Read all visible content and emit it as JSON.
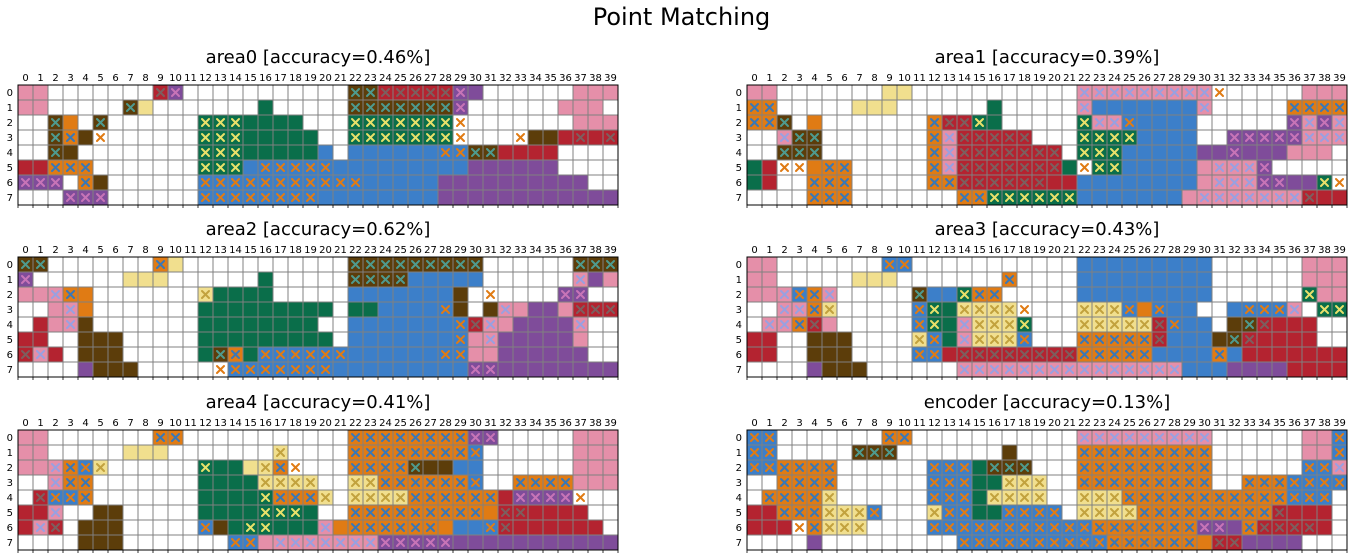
{
  "title": "Point Matching",
  "grid": {
    "rows": 8,
    "cols": 40
  },
  "palette": {
    "p": "#e58fa9",
    "y": "#f1df8e",
    "o": "#e07b14",
    "d": "#5c3d0a",
    "g": "#0a6e4a",
    "b": "#3c7fc9",
    "r": "#b42330",
    "u": "#7f4c9a"
  },
  "cross_colors": {
    "p": "#9aa0e0",
    "y": "#c2a23e",
    "o": "#3a78b7",
    "d": "#4e9a8e",
    "g": "#e8e06a",
    "b": "#e07b14",
    "r": "#7d5e5e",
    "u": "#c774b7"
  },
  "legend_note": "",
  "chart_data": [
    {
      "type": "heatmap",
      "title": "area0 [accuracy=0.46%]",
      "x_ticks": [
        "0",
        "1",
        "2",
        "3",
        "4",
        "5",
        "6",
        "7",
        "8",
        "9",
        "10",
        "11",
        "12",
        "13",
        "14",
        "15",
        "16",
        "17",
        "18",
        "19",
        "20",
        "21",
        "22",
        "23",
        "24",
        "25",
        "26",
        "27",
        "28",
        "29",
        "30",
        "31",
        "32",
        "33",
        "34",
        "35",
        "36",
        "37",
        "38",
        "39"
      ],
      "y_ticks": [
        "0",
        "1",
        "2",
        "3",
        "4",
        "5",
        "6",
        "7"
      ],
      "cells": [
        "pp.......ru...........ddrrrrruu......ppp",
        "pp.....dy.......g.....dddddddu......ppp",
        "..do.d......ggggggg...ggggggg........ppp",
        "..dod.......gggggggg..ggggggg.....ddrrrr",
        "..dd........ggggggggb.bbbbbbbbddrrrr....",
        "rrooo.......gggbbbbbbbbbbbbbbbuuuuuu....",
        "uuu.od......bbbbbbbbbbbbbbbbuuuuuuuuuu..",
        "...uuu......bbbbbbbbbbbbbbbbuuuuuuuuuuuu"
      ],
      "crosses": [
        ".........xx...........xxxxxxxx..........",
        ".......x..............xxxxxxxx..........",
        "..x..x......xxx.......xxxxxxxx..........",
        "..xx.x......xxx.......xxxxxxxx...x...x.x",
        "..x.........xxx.............xxxx........",
        "..xxx.......xxx.xxxxx...................",
        "xxx.x.......xxxxxxxxxxx.................",
        "...xxx......xxxxxxxx...................."
      ]
    },
    {
      "type": "heatmap",
      "title": "area1 [accuracy=0.39%]",
      "x_ticks": [
        "0",
        "1",
        "2",
        "3",
        "4",
        "5",
        "6",
        "7",
        "8",
        "9",
        "10",
        "11",
        "12",
        "13",
        "14",
        "15",
        "16",
        "17",
        "18",
        "19",
        "20",
        "21",
        "22",
        "23",
        "24",
        "25",
        "26",
        "27",
        "28",
        "29",
        "30",
        "31",
        "32",
        "33",
        "34",
        "35",
        "36",
        "37",
        "38",
        "39"
      ],
      "y_ticks": [
        "0",
        "1",
        "2",
        "3",
        "4",
        "5",
        "6",
        "7"
      ],
      "cells": [
        "pp.......yy...........ppppppppp......ppp",
        "oo.....yyy......g.....pbbbbbbbp.....oooo",
        "ood.o.......orrgg.....gppbbbbb......upup",
        "..pdd.......oprrrrr...ggggbbbb..uuuuuppp",
        "..ddd.......oprrrrrrr.gggbbbbbuuuuuuppp.",
        "gr..ooo.....oprrrrrrrg.ggbbbbbppppu.....",
        "gr..ooo.....oorrrrrrrrbbbbbbbbppppuuuug.",
        "....ooo.......ooggggggbbbbbbbpppppppprrr"
      ],
      "crosses": [
        "......................xxxxxxxxxx........",
        "xx....................x.......x.....xxxx",
        "xxx.........xxxx......xxxx..........xxxx",
        "..xxx.......xxxxxxx...xxxx......xxxxxxxx",
        "..xxx.......xxxxxxxxx.xxx.......x.......",
        "..xx.xx.....xxxxxxxxx.xxx......xxxx.....",
        "....xxx.....xxxxxxxx...........xxxxx..xx",
        "....xxx.......xxxxxxxx........xxxxxxxx.."
      ]
    },
    {
      "type": "heatmap",
      "title": "area2 [accuracy=0.62%]",
      "x_ticks": [
        "0",
        "1",
        "2",
        "3",
        "4",
        "5",
        "6",
        "7",
        "8",
        "9",
        "10",
        "11",
        "12",
        "13",
        "14",
        "15",
        "16",
        "17",
        "18",
        "19",
        "20",
        "21",
        "22",
        "23",
        "24",
        "25",
        "26",
        "27",
        "28",
        "29",
        "30",
        "31",
        "32",
        "33",
        "34",
        "35",
        "36",
        "37",
        "38",
        "39"
      ],
      "y_ticks": [
        "0",
        "1",
        "2",
        "3",
        "4",
        "5",
        "6",
        "7"
      ],
      "cells": [
        "dd.......oy...........ddddddddd......ddd",
        "u......yyy......g.....ddddbbbbb......pup",
        "pppoo.......ygggg.....bbbbbbbd......uu..",
        "..ppo.......ggggggggg.ggbbbbbd.dppuuprrr",
        ".rppd.......gggggggg..bbbbbbbbrppuuuup..",
        "rr..ddd.....ggggggggg.bbbbbbbbppuuuuup..",
        "rpr.ddd.....gdogbbbbbbbbbbbbbbppuuuuuu..",
        "....uddd......bbbbbbbbbbbbbbbbuuuuuuuuuu"
      ],
      "crosses": [
        "xx.......x............xxxxxxxxx......xxx",
        "x.....................xxxx...........x..",
        "..xx........x..................x....xx..",
        "...x........................x...x....xxx",
        "...x.........................xxx.....x..",
        ".............................x.x........",
        "xx...........xx.xxxxxx......xx..........",
        ".............xxxxxxxx.........xx........"
      ]
    },
    {
      "type": "heatmap",
      "title": "area3 [accuracy=0.43%]",
      "x_ticks": [
        "0",
        "1",
        "2",
        "3",
        "4",
        "5",
        "6",
        "7",
        "8",
        "9",
        "10",
        "11",
        "12",
        "13",
        "14",
        "15",
        "16",
        "17",
        "18",
        "19",
        "20",
        "21",
        "22",
        "23",
        "24",
        "25",
        "26",
        "27",
        "28",
        "29",
        "30",
        "31",
        "32",
        "33",
        "34",
        "35",
        "36",
        "37",
        "38",
        "39"
      ],
      "y_ticks": [
        "0",
        "1",
        "2",
        "3",
        "4",
        "5",
        "6",
        "7"
      ],
      "cells": [
        "pp.......bb...........bbbbbbbbb......ppp",
        "pp.....yyy.......o....bbbbbbbbb......ppp",
        "pppbop.....dbbgoo.....bbbbbbbbb......gpp",
        "..ppoy.....bggyyyy....yyybobbb..bbbbp.gg",
        ".pporp.....bggpyyyg...yyyyyrbbb.ddrrrr..",
        "rr..ddd....ybgpyyyb...ooooorbbbddrrrrr..",
        "rr..ddd....bbrrrrrrrrrooooobbbbobrrrrrrr",
        "....uddd......pppppppppppppppbbbuuuurrrr"
      ],
      "crosses": [
        ".........xx.............................",
        ".................x......................",
        "..xxxx.....x..xxx....................x..",
        "..xxxx.....xx.xxxxx...xxxx.x.....xxxx.xx",
        ".xxxx......xx.xxxxx...xxxxxxx....xx.....",
        "...........xx.xxxxx...xxxxxx....xx......",
        "...........xx.xxxxxxxxxxxxx....x........",
        "..............xxxxxxxxxxxxxxx..........."
      ]
    },
    {
      "type": "heatmap",
      "title": "area4 [accuracy=0.41%]",
      "x_ticks": [
        "0",
        "1",
        "2",
        "3",
        "4",
        "5",
        "6",
        "7",
        "8",
        "9",
        "10",
        "11",
        "12",
        "13",
        "14",
        "15",
        "16",
        "17",
        "18",
        "19",
        "20",
        "21",
        "22",
        "23",
        "24",
        "25",
        "26",
        "27",
        "28",
        "29",
        "30",
        "31",
        "32",
        "33",
        "34",
        "35",
        "36",
        "37",
        "38",
        "39"
      ],
      "y_ticks": [
        "0",
        "1",
        "2",
        "3",
        "4",
        "5",
        "6",
        "7"
      ],
      "cells": [
        "pp.......oo...........oooooooouu.....ppp",
        "pp.....yyy.......y....oooooooob......ppp",
        "pppoby......gggyyo....oooodddbb......ppp",
        "..poo.......ggggyyyy..yyoooooob..ooooppp",
        ".rbbo.......gggggoooy.yyyyooooooruuuu...",
        "rrp..dd.....gggggggg..oooooooooorrrrrr..",
        "rpr.ddd.....bdggggggpoooooooobbbrrrrrrr.",
        "....ddd.......bbppppppppuuuuuuuuuuuuuuuu"
      ],
      "crosses": [
        ".........xx...........xxxxxxxxxx........",
        ".................x....xxxxxxxxx.........",
        "..xxxx......x...xxx...xxxxx.............",
        "..xxx...........xxxx..xxxxxxxxx..xxxx...",
        ".xxxx...........xxxxx.xxxxxxxxxx.xxxxx..",
        "..x.............xxx...xxxxxxxxx.xx......",
        ".xx.........x..xx...x.xxxxxx...xx.......",
        "..............xx.xxxxxxxxxxxx..........."
      ]
    },
    {
      "type": "heatmap",
      "title": "encoder [accuracy=0.13%]",
      "x_ticks": [
        "0",
        "1",
        "2",
        "3",
        "4",
        "5",
        "6",
        "7",
        "8",
        "9",
        "10",
        "11",
        "12",
        "13",
        "14",
        "15",
        "16",
        "17",
        "18",
        "19",
        "20",
        "21",
        "22",
        "23",
        "24",
        "25",
        "26",
        "27",
        "28",
        "29",
        "30",
        "31",
        "32",
        "33",
        "34",
        "35",
        "36",
        "37",
        "38",
        "39"
      ],
      "y_ticks": [
        "0",
        "1",
        "2",
        "3",
        "4",
        "5",
        "6",
        "7"
      ],
      "cells": [
        "bb.......oo...........ppppppppp......ppb",
        "bb.....ddd.......d....ooooooooo......ppb",
        "bboooo......bbbgddd...ooooooooo......bbp",
        "..oooo......bbbggyyy..ooooooooo..ooobbbb",
        ".ooooy......bbbgyyyy..yyyooooooooooobbb.",
        "rroooyyyb...ybbggbbbb.yyyyooooooooorrrr.",
        "rrr.oyyy....bbbbbbbbbbbooooooouuuorrrrr.",
        "....u.........bbbbbbbbbbooooooorruuuu..."
      ],
      "crosses": [
        "xx.......xx...........xxxxxxxxx........x",
        "xx.....xxx............xxxxxxxxx........x",
        "xxxxxx......xxx.xxx...xxxxxxxxx......xxx",
        "..xxxx......xxx..xxx..xxxxxxxxx..xxxxxxx",
        ".xxxxx......xxx.xxxx..xxxxxxxxxxxxxxxxx.",
        "..xxxxxxx...xxx..xxxx.xxxxxxxxxxxxxx....",
        "...xxxxx....xxxxxxxxxxxxxxxxxxxx.xxxxx..",
        "..............xxxxxxxxxxxxxxxx.xx......."
      ]
    }
  ]
}
